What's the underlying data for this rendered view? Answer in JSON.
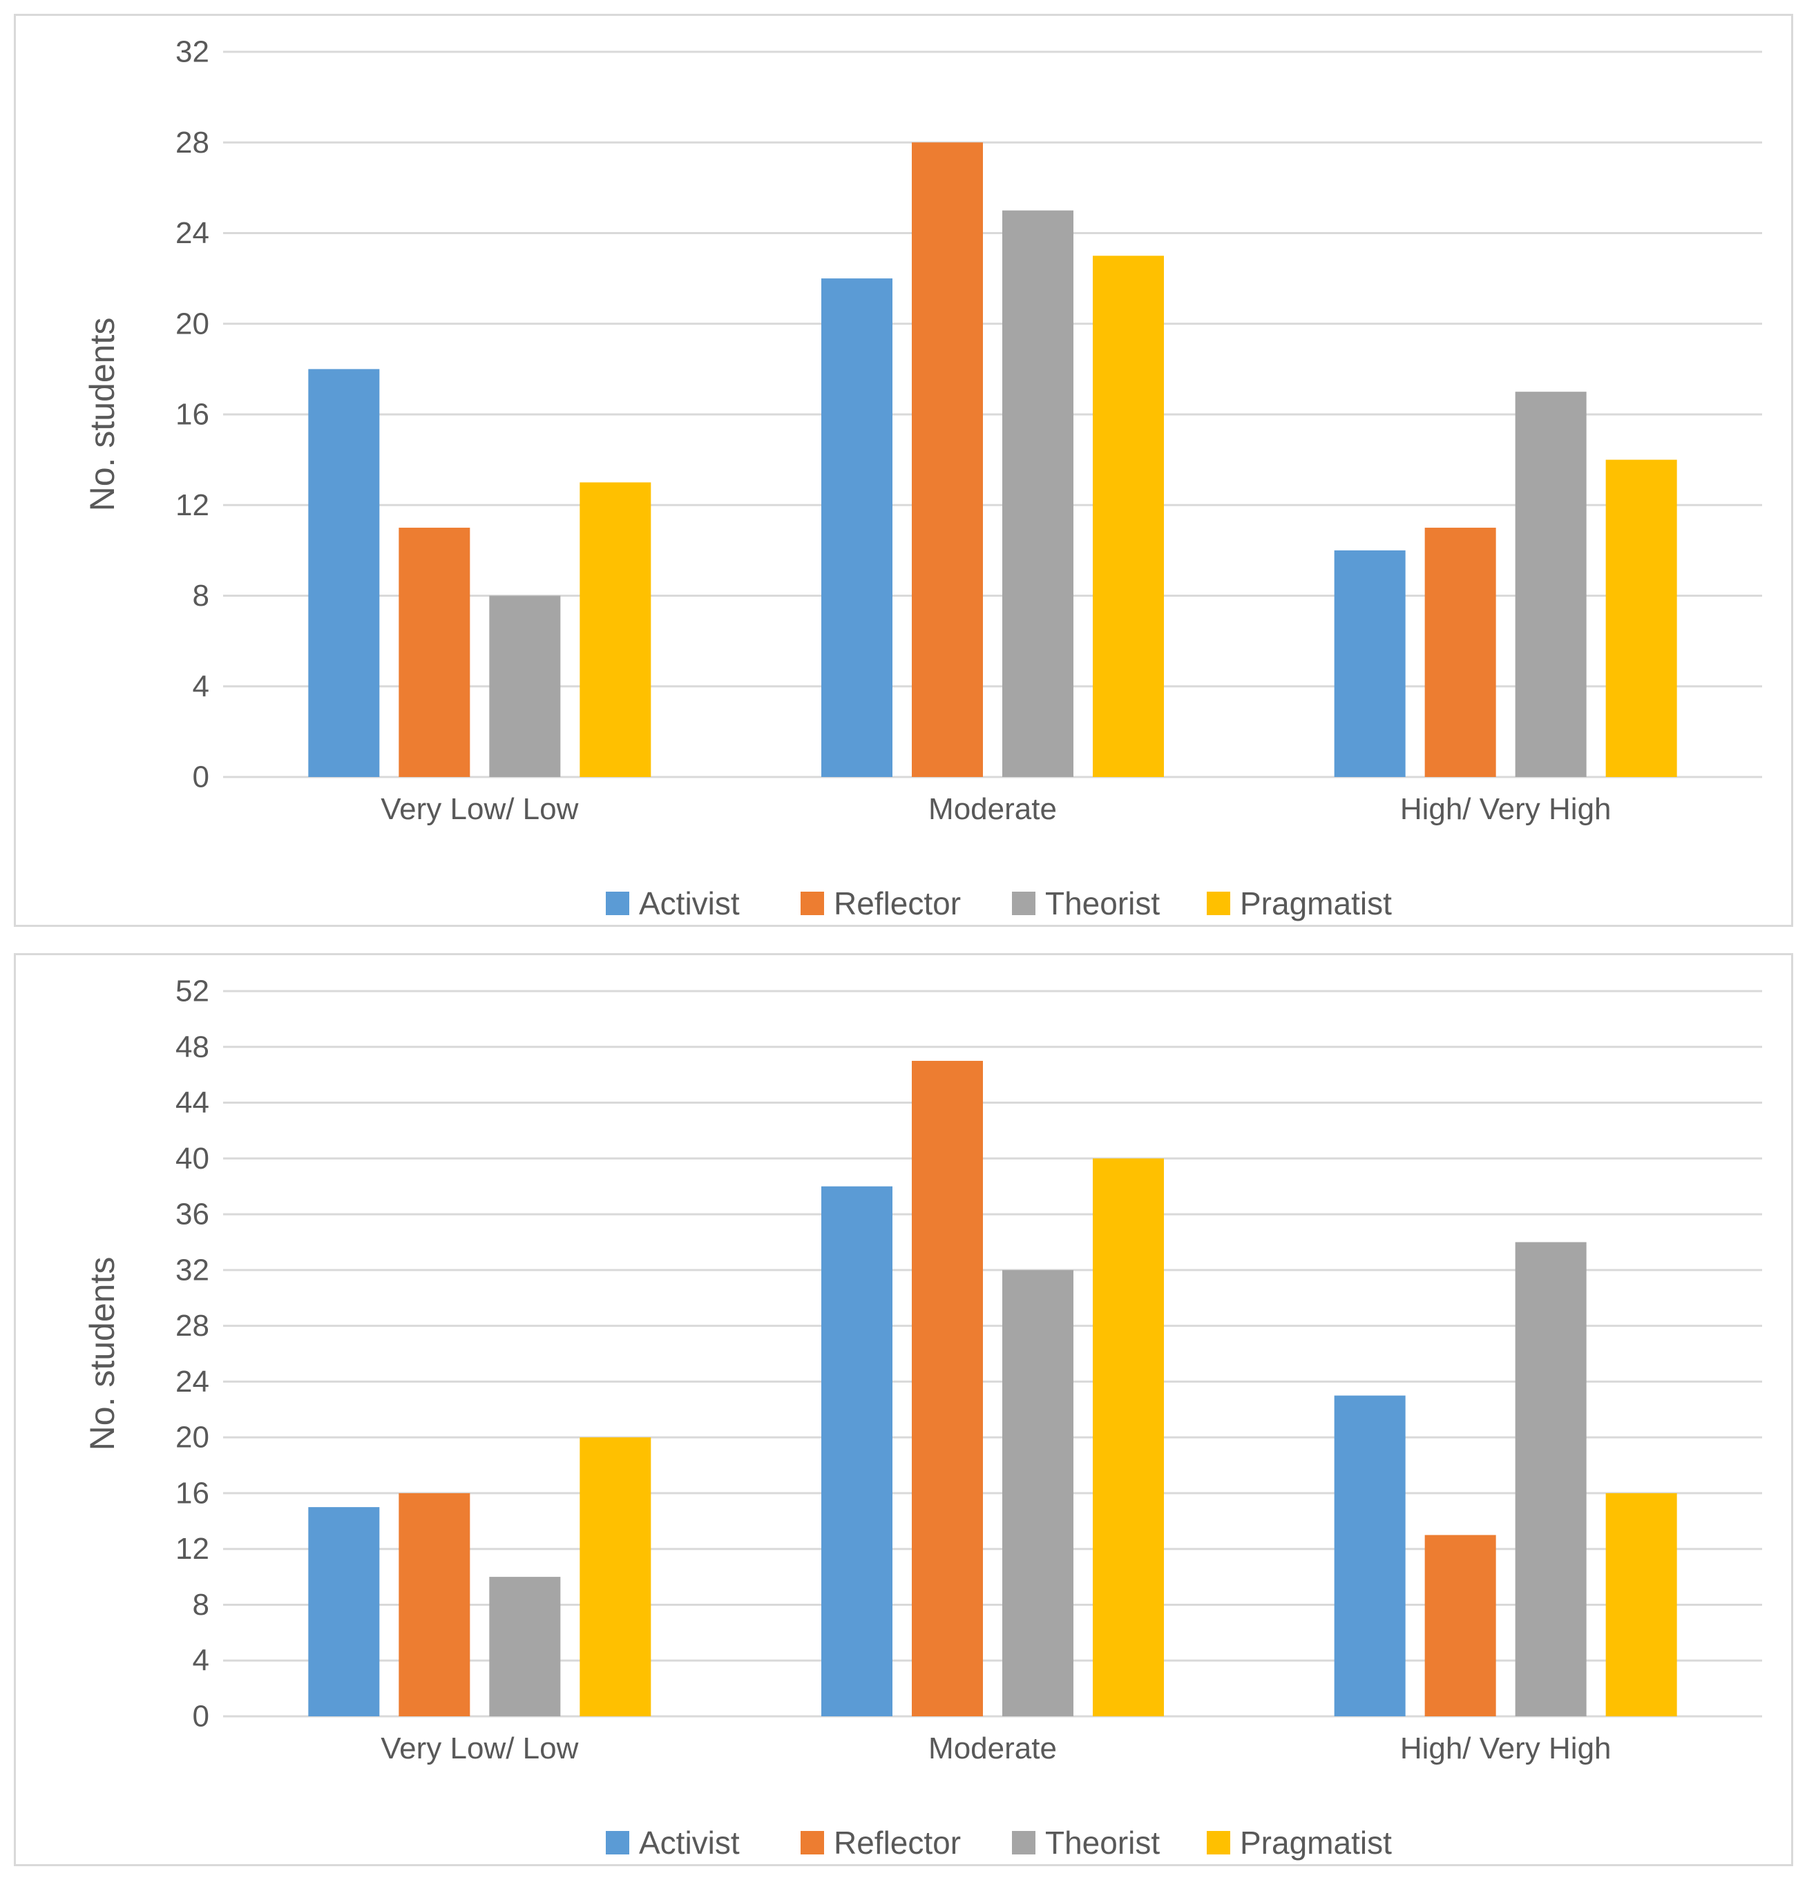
{
  "colors": {
    "Activist": "#5b9bd5",
    "Reflector": "#ed7d31",
    "Theorist": "#a5a5a5",
    "Pragmatist": "#ffc000",
    "gridline": "#d9d9d9",
    "text": "#595959"
  },
  "chart_data": [
    {
      "type": "bar",
      "title": "",
      "xlabel": "",
      "ylabel": "No. students",
      "categories": [
        "Very Low/ Low",
        "Moderate",
        "High/ Very High"
      ],
      "series": [
        {
          "name": "Activist",
          "values": [
            18,
            22,
            10
          ]
        },
        {
          "name": "Reflector",
          "values": [
            11,
            28,
            11
          ]
        },
        {
          "name": "Theorist",
          "values": [
            8,
            25,
            17
          ]
        },
        {
          "name": "Pragmatist",
          "values": [
            13,
            23,
            14
          ]
        }
      ],
      "ylim": [
        0,
        32
      ],
      "yticks": [
        0,
        4,
        8,
        12,
        16,
        20,
        24,
        28,
        32
      ],
      "grid": true,
      "legend": "bottom"
    },
    {
      "type": "bar",
      "title": "",
      "xlabel": "",
      "ylabel": "No. students",
      "categories": [
        "Very Low/ Low",
        "Moderate",
        "High/ Very High"
      ],
      "series": [
        {
          "name": "Activist",
          "values": [
            15,
            38,
            23
          ]
        },
        {
          "name": "Reflector",
          "values": [
            16,
            47,
            13
          ]
        },
        {
          "name": "Theorist",
          "values": [
            10,
            32,
            34
          ]
        },
        {
          "name": "Pragmatist",
          "values": [
            20,
            40,
            16
          ]
        }
      ],
      "ylim": [
        0,
        52
      ],
      "yticks": [
        0,
        4,
        8,
        12,
        16,
        20,
        24,
        28,
        32,
        36,
        40,
        44,
        48,
        52
      ],
      "grid": true,
      "legend": "bottom"
    }
  ]
}
